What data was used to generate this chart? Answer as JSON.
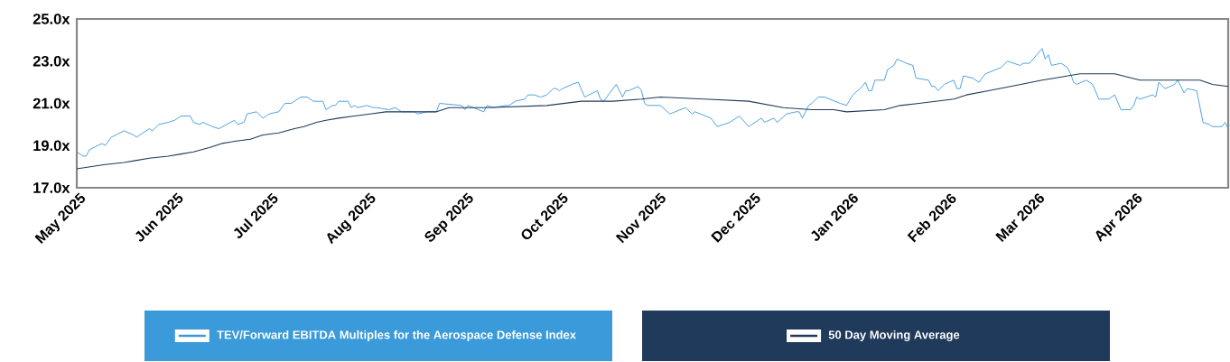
{
  "chart_data": {
    "type": "line",
    "xlim": [
      "2025-05-01",
      "2026-05-01"
    ],
    "ylim": [
      17,
      25
    ],
    "xticks": [
      {
        "value": "2025-05-01",
        "label": "May 2025"
      },
      {
        "value": "2025-06-01",
        "label": "Jun 2025"
      },
      {
        "value": "2025-07-01",
        "label": "Jul 2025"
      },
      {
        "value": "2025-08-01",
        "label": "Aug 2025"
      },
      {
        "value": "2025-09-01",
        "label": "Sep 2025"
      },
      {
        "value": "2025-10-01",
        "label": "Oct 2025"
      },
      {
        "value": "2025-11-01",
        "label": "Nov 2025"
      },
      {
        "value": "2025-12-01",
        "label": "Dec 2025"
      },
      {
        "value": "2026-01-01",
        "label": "Jan 2026"
      },
      {
        "value": "2026-02-01",
        "label": "Feb 2026"
      },
      {
        "value": "2026-03-01",
        "label": "Mar 2026"
      },
      {
        "value": "2026-04-01",
        "label": "Apr 2026"
      }
    ],
    "yticks": [
      {
        "value": 17,
        "label": "17.0x"
      },
      {
        "value": 19,
        "label": "19.0x"
      },
      {
        "value": 21,
        "label": "21.0x"
      },
      {
        "value": 23,
        "label": "23.0x"
      },
      {
        "value": 25,
        "label": "25.0x"
      }
    ],
    "legend": "bottom",
    "line_style": "solid",
    "series": [
      {
        "name": "TEV/Forward EBITDA Multiples for the Aerospace Defense Index",
        "color": "#3b9ad9",
        "x": [
          "2025-05-01",
          "2025-05-03",
          "2025-05-04",
          "2025-05-05",
          "2025-05-09",
          "2025-05-10",
          "2025-05-12",
          "2025-05-16",
          "2025-05-19",
          "2025-05-20",
          "2025-05-24",
          "2025-05-25",
          "2025-05-27",
          "2025-05-30",
          "2025-06-01",
          "2025-06-03",
          "2025-06-06",
          "2025-06-07",
          "2025-06-09",
          "2025-06-10",
          "2025-06-13",
          "2025-06-15",
          "2025-06-20",
          "2025-06-21",
          "2025-06-23",
          "2025-06-24",
          "2025-06-27",
          "2025-06-29",
          "2025-07-01",
          "2025-07-04",
          "2025-07-06",
          "2025-07-08",
          "2025-07-11",
          "2025-07-13",
          "2025-07-15",
          "2025-07-18",
          "2025-07-19",
          "2025-07-21",
          "2025-07-22",
          "2025-07-23",
          "2025-07-26",
          "2025-07-27",
          "2025-07-28",
          "2025-07-29",
          "2025-08-01",
          "2025-08-03",
          "2025-08-04",
          "2025-08-08",
          "2025-08-10",
          "2025-08-12",
          "2025-08-16",
          "2025-08-17",
          "2025-08-20",
          "2025-08-23",
          "2025-08-24",
          "2025-08-31",
          "2025-09-01",
          "2025-09-02",
          "2025-09-07",
          "2025-09-08",
          "2025-09-10",
          "2025-09-14",
          "2025-09-15",
          "2025-09-17",
          "2025-09-20",
          "2025-09-21",
          "2025-09-23",
          "2025-09-25",
          "2025-09-27",
          "2025-09-29",
          "2025-09-30",
          "2025-10-01",
          "2025-10-02",
          "2025-10-05",
          "2025-10-07",
          "2025-10-09",
          "2025-10-13",
          "2025-10-14",
          "2025-10-15",
          "2025-10-19",
          "2025-10-21",
          "2025-10-22",
          "2025-10-23",
          "2025-10-26",
          "2025-10-27",
          "2025-10-28",
          "2025-10-29",
          "2025-11-02",
          "2025-11-05",
          "2025-11-10",
          "2025-11-12",
          "2025-11-13",
          "2025-11-18",
          "2025-11-20",
          "2025-11-24",
          "2025-11-27",
          "2025-11-30",
          "2025-12-02",
          "2025-12-04",
          "2025-12-05",
          "2025-12-08",
          "2025-12-09",
          "2025-12-12",
          "2025-12-15",
          "2025-12-16",
          "2025-12-17",
          "2025-12-19",
          "2025-12-20",
          "2025-12-22",
          "2025-12-24",
          "2025-12-29",
          "2025-12-31",
          "2026-01-02",
          "2026-01-05",
          "2026-01-06",
          "2026-01-07",
          "2026-01-08",
          "2026-01-09",
          "2026-01-12",
          "2026-01-13",
          "2026-01-15",
          "2026-01-16",
          "2026-01-19",
          "2026-01-21",
          "2026-01-22",
          "2026-01-26",
          "2026-01-27",
          "2026-01-28",
          "2026-01-29",
          "2026-01-31",
          "2026-02-03",
          "2026-02-04",
          "2026-02-05",
          "2026-02-06",
          "2026-02-09",
          "2026-02-11",
          "2026-02-13",
          "2026-02-18",
          "2026-02-20",
          "2026-02-24",
          "2026-02-25",
          "2026-02-27",
          "2026-03-03",
          "2026-03-04",
          "2026-03-05",
          "2026-03-06",
          "2026-03-09",
          "2026-03-11",
          "2026-03-12",
          "2026-03-13",
          "2026-03-14",
          "2026-03-17",
          "2026-03-19",
          "2026-03-21",
          "2026-03-24",
          "2026-03-26",
          "2026-03-28",
          "2026-03-31",
          "2026-04-01",
          "2026-04-02",
          "2026-04-03",
          "2026-04-07",
          "2026-04-08",
          "2026-04-09",
          "2026-04-11",
          "2026-04-14",
          "2026-04-15",
          "2026-04-17",
          "2026-04-18",
          "2026-04-21",
          "2026-04-23",
          "2026-04-25",
          "2026-04-26",
          "2026-04-29",
          "2026-04-30",
          "2026-05-01"
        ],
        "values": [
          18.7,
          18.5,
          18.5,
          18.8,
          19.1,
          19.0,
          19.4,
          19.7,
          19.5,
          19.4,
          19.8,
          19.7,
          20.0,
          20.1,
          20.2,
          20.4,
          20.4,
          20.1,
          20.0,
          20.1,
          19.9,
          19.8,
          20.2,
          20.0,
          20.1,
          20.5,
          20.6,
          20.3,
          20.5,
          20.6,
          21.0,
          21.0,
          21.3,
          21.3,
          21.1,
          21.1,
          20.7,
          20.9,
          20.9,
          21.1,
          21.1,
          20.8,
          20.9,
          20.8,
          20.9,
          20.8,
          20.8,
          20.7,
          20.8,
          20.6,
          20.6,
          20.5,
          20.6,
          20.6,
          21.0,
          20.9,
          20.7,
          20.9,
          20.6,
          20.9,
          20.8,
          20.9,
          20.9,
          21.1,
          21.2,
          21.4,
          21.4,
          21.3,
          21.4,
          21.7,
          21.7,
          21.6,
          21.7,
          21.9,
          22.0,
          21.3,
          21.6,
          21.2,
          21.1,
          21.9,
          21.3,
          21.6,
          21.6,
          21.8,
          21.6,
          21.0,
          20.9,
          20.9,
          20.5,
          20.8,
          20.5,
          20.6,
          20.3,
          19.9,
          20.1,
          20.4,
          19.9,
          20.1,
          20.3,
          20.1,
          20.3,
          20.1,
          20.5,
          20.6,
          20.6,
          20.3,
          20.9,
          21.0,
          21.3,
          21.3,
          21.0,
          20.9,
          21.4,
          21.8,
          22.0,
          21.6,
          21.6,
          22.1,
          22.1,
          22.6,
          22.8,
          23.1,
          22.9,
          22.8,
          22.2,
          22.1,
          21.8,
          21.8,
          21.6,
          21.9,
          22.1,
          21.7,
          21.7,
          22.3,
          22.2,
          22.0,
          22.4,
          22.7,
          23.0,
          22.8,
          22.9,
          22.9,
          23.6,
          23.1,
          23.3,
          22.8,
          22.9,
          22.7,
          22.4,
          22.0,
          21.9,
          22.1,
          21.9,
          21.2,
          21.2,
          21.4,
          20.7,
          20.7,
          20.9,
          21.3,
          21.2,
          21.4,
          21.3,
          22.0,
          21.7,
          21.9,
          22.1,
          21.5,
          21.7,
          21.6,
          20.1,
          20.0,
          19.9,
          19.9,
          20.1,
          19.8
        ]
      },
      {
        "name": "50 Day Moving Average",
        "color": "#1f3a5a",
        "x": [
          "2025-05-01",
          "2025-05-10",
          "2025-05-16",
          "2025-05-20",
          "2025-05-24",
          "2025-05-30",
          "2025-06-03",
          "2025-06-07",
          "2025-06-12",
          "2025-06-16",
          "2025-06-20",
          "2025-06-25",
          "2025-06-29",
          "2025-07-04",
          "2025-07-09",
          "2025-07-12",
          "2025-07-16",
          "2025-07-19",
          "2025-07-23",
          "2025-07-28",
          "2025-08-02",
          "2025-08-07",
          "2025-08-16",
          "2025-08-23",
          "2025-08-27",
          "2025-09-08",
          "2025-09-27",
          "2025-10-08",
          "2025-10-18",
          "2025-10-27",
          "2025-11-02",
          "2025-11-16",
          "2025-11-30",
          "2025-12-11",
          "2025-12-20",
          "2025-12-27",
          "2025-12-31",
          "2026-01-12",
          "2026-01-17",
          "2026-01-23",
          "2026-02-03",
          "2026-02-07",
          "2026-02-14",
          "2026-02-21",
          "2026-03-03",
          "2026-03-07",
          "2026-03-15",
          "2026-03-18",
          "2026-03-26",
          "2026-04-03",
          "2026-04-10",
          "2026-04-22",
          "2026-04-26",
          "2026-05-01"
        ],
        "values": [
          17.9,
          18.1,
          18.2,
          18.3,
          18.4,
          18.5,
          18.6,
          18.7,
          18.9,
          19.1,
          19.2,
          19.3,
          19.5,
          19.6,
          19.8,
          19.9,
          20.1,
          20.2,
          20.3,
          20.4,
          20.5,
          20.6,
          20.6,
          20.6,
          20.8,
          20.8,
          20.9,
          21.1,
          21.1,
          21.2,
          21.3,
          21.2,
          21.1,
          20.8,
          20.7,
          20.7,
          20.6,
          20.7,
          20.9,
          21.0,
          21.2,
          21.4,
          21.6,
          21.8,
          22.1,
          22.2,
          22.4,
          22.4,
          22.4,
          22.1,
          22.1,
          22.1,
          21.9,
          21.8
        ]
      }
    ]
  }
}
